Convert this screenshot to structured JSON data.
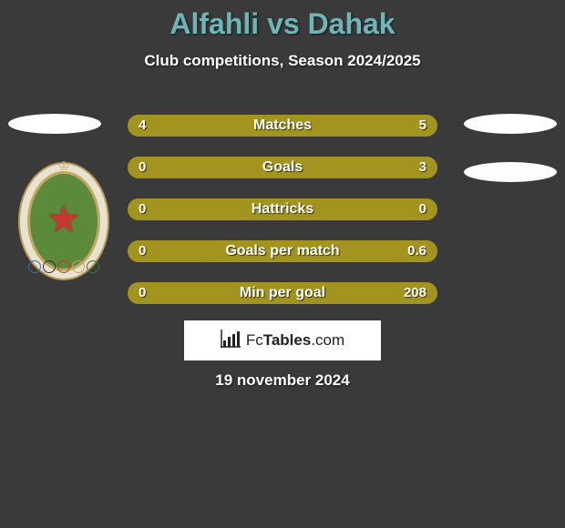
{
  "title": "Alfahli vs Dahak",
  "subtitle": "Club competitions, Season 2024/2025",
  "date": "19 november 2024",
  "logo": {
    "text_before": "Fc",
    "text_bold": "Tables",
    "text_after": ".com"
  },
  "colors": {
    "title": "#6fb5b8",
    "background": "#3a3a3a",
    "left_bar": "#a3941f",
    "right_bar": "#a3941f",
    "text": "#ffffff"
  },
  "badge": {
    "outer_bg": "#e8e2d0",
    "outer_border": "#b89a5a",
    "inner_bg": "#5a8a3a",
    "inner_border": "#c4a862",
    "star_color": "#c8372e",
    "ring_colors": [
      "#3b6fb5",
      "#333",
      "#c8372e",
      "#c4a862",
      "#3a7a3a"
    ]
  },
  "bars": {
    "track_width": 340,
    "track_color": "#3a3a3a",
    "rows": [
      {
        "label": "Matches",
        "left": "4",
        "right": "5",
        "left_w": 151,
        "right_w": 189
      },
      {
        "label": "Goals",
        "left": "0",
        "right": "3",
        "left_w": 18,
        "right_w": 322
      },
      {
        "label": "Hattricks",
        "left": "0",
        "right": "0",
        "left_w": 170,
        "right_w": 170
      },
      {
        "label": "Goals per match",
        "left": "0",
        "right": "0.6",
        "left_w": 18,
        "right_w": 322
      },
      {
        "label": "Min per goal",
        "left": "0",
        "right": "208",
        "left_w": 18,
        "right_w": 322
      }
    ]
  }
}
